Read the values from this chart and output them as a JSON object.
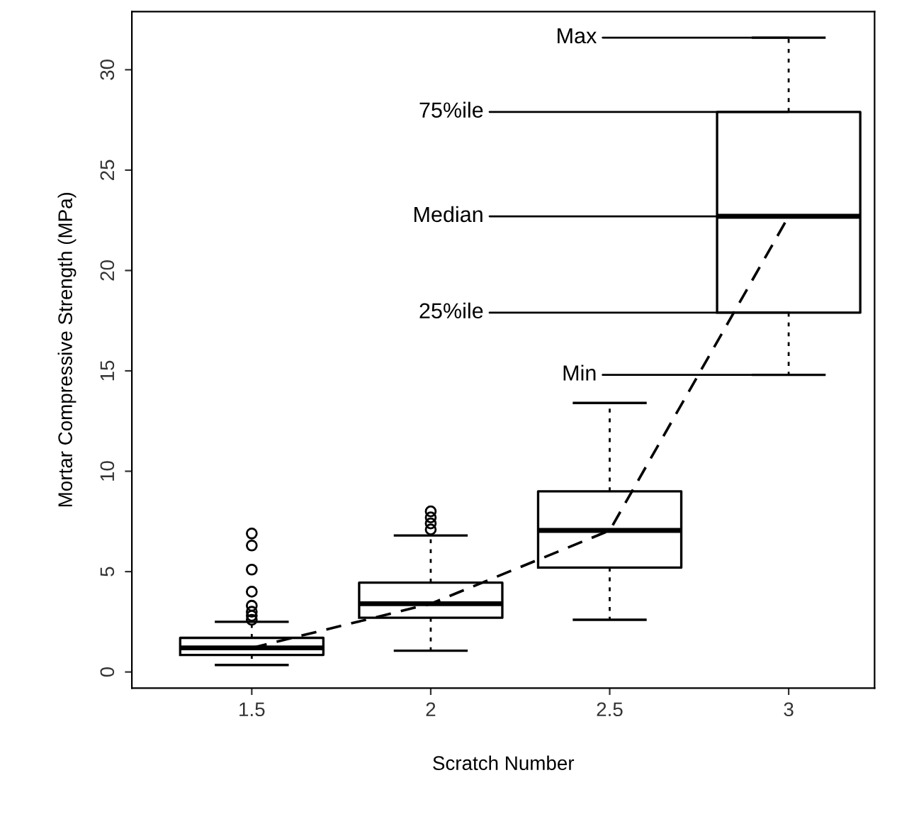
{
  "chart_data": {
    "type": "box",
    "xlabel": "Scratch Number",
    "ylabel": "Mortar Compressive Strength (MPa)",
    "categories": [
      "1.5",
      "2",
      "2.5",
      "3"
    ],
    "boxes": [
      {
        "low": 0.35,
        "q1": 0.85,
        "median": 1.2,
        "q3": 1.7,
        "high": 2.5,
        "outliers": [
          2.6,
          2.8,
          3.0,
          3.3,
          4.0,
          5.1,
          6.3,
          6.9
        ]
      },
      {
        "low": 1.06,
        "q1": 2.7,
        "median": 3.4,
        "q3": 4.45,
        "high": 6.8,
        "outliers": [
          7.1,
          7.4,
          7.7,
          8.0
        ]
      },
      {
        "low": 2.6,
        "q1": 5.2,
        "median": 7.05,
        "q3": 9.0,
        "high": 13.4
      },
      {
        "low": 14.8,
        "q1": 17.9,
        "median": 22.7,
        "q3": 27.9,
        "high": 31.6
      }
    ],
    "series": [
      {
        "type": "line",
        "color": "#000000",
        "x": [
          "1.5",
          "2",
          "2.5",
          "3"
        ],
        "values": [
          1.2,
          3.4,
          7.05,
          22.7
        ],
        "line_style": "dashed",
        "marker": "none"
      }
    ],
    "annotations": [
      {
        "text": "Max",
        "x": "3",
        "y": 31.6
      },
      {
        "text": "75%ile",
        "x": "3",
        "y": 27.9
      },
      {
        "text": "Median",
        "x": "3",
        "y": 22.7
      },
      {
        "text": "25%ile",
        "x": "3",
        "y": 17.9
      },
      {
        "text": "Min",
        "x": "3",
        "y": 14.8
      }
    ],
    "ylim": [
      -0.8,
      32.9
    ],
    "yticks": [
      0,
      5,
      10,
      15,
      20,
      25,
      30
    ],
    "grid": false,
    "legend": false
  }
}
